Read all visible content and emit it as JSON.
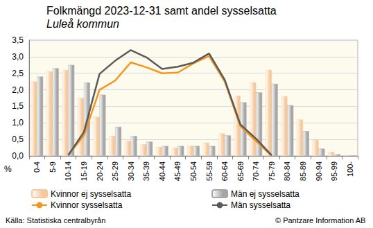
{
  "chart_data": {
    "type": "bar",
    "title": "Folkmängd 2023-12-31 samt andel sysselsatta",
    "subtitle": "Luleå kommun",
    "ylabel": "%",
    "source": "Källa: Statistiska centralbyrån",
    "copyright": "© Pantzare Information AB",
    "categories": [
      "0-4",
      "5-9",
      "10-14",
      "15-19",
      "20-24",
      "25-29",
      "30-34",
      "35-39",
      "40-44",
      "45-49",
      "50-54",
      "55-59",
      "60-64",
      "65-69",
      "70-74",
      "75-79",
      "80-84",
      "85-89",
      "90-94",
      "95-99",
      "100-"
    ],
    "series": [
      {
        "name": "Kvinnor ej sysselsatta",
        "type": "bar",
        "color": "#f6c89c",
        "values": [
          2.25,
          2.55,
          2.6,
          1.75,
          1.18,
          0.6,
          0.45,
          0.35,
          0.27,
          0.25,
          0.3,
          0.4,
          0.68,
          1.82,
          2.22,
          2.6,
          1.8,
          1.1,
          0.48,
          0.12,
          0.02
        ]
      },
      {
        "name": "Män ej sysselsatta",
        "type": "bar",
        "color": "#a6a6a6",
        "values": [
          2.4,
          2.65,
          2.75,
          2.22,
          1.85,
          0.88,
          0.6,
          0.43,
          0.3,
          0.3,
          0.3,
          0.3,
          0.62,
          1.62,
          1.92,
          2.18,
          1.53,
          0.75,
          0.22,
          0.05,
          0.01
        ]
      },
      {
        "name": "Kvinnor sysselsatta",
        "type": "line",
        "color": "#f7941d",
        "values": [
          null,
          null,
          0.02,
          0.62,
          2.0,
          2.28,
          2.83,
          2.68,
          2.5,
          2.52,
          2.8,
          3.02,
          2.25,
          0.9,
          0.45,
          0.0,
          null,
          null,
          null,
          null,
          null
        ]
      },
      {
        "name": "Män sysselsatta",
        "type": "line",
        "color": "#5a5a5a",
        "values": [
          null,
          null,
          0.02,
          0.72,
          2.48,
          2.88,
          3.2,
          2.98,
          2.63,
          2.7,
          2.82,
          3.1,
          2.3,
          0.95,
          0.52,
          0.02,
          null,
          null,
          null,
          null,
          null
        ]
      }
    ],
    "ylim": [
      0,
      3.5
    ],
    "yticks": [
      {
        "value": 0,
        "label": "0,0"
      },
      {
        "value": 0.5,
        "label": "0,5"
      },
      {
        "value": 1,
        "label": "1,0"
      },
      {
        "value": 1.5,
        "label": "1,5"
      },
      {
        "value": 2,
        "label": "2,0"
      },
      {
        "value": 2.5,
        "label": "2,5"
      },
      {
        "value": 3,
        "label": "3,0"
      },
      {
        "value": 3.5,
        "label": "3,5"
      }
    ],
    "grid": true,
    "legend": "bottom"
  }
}
